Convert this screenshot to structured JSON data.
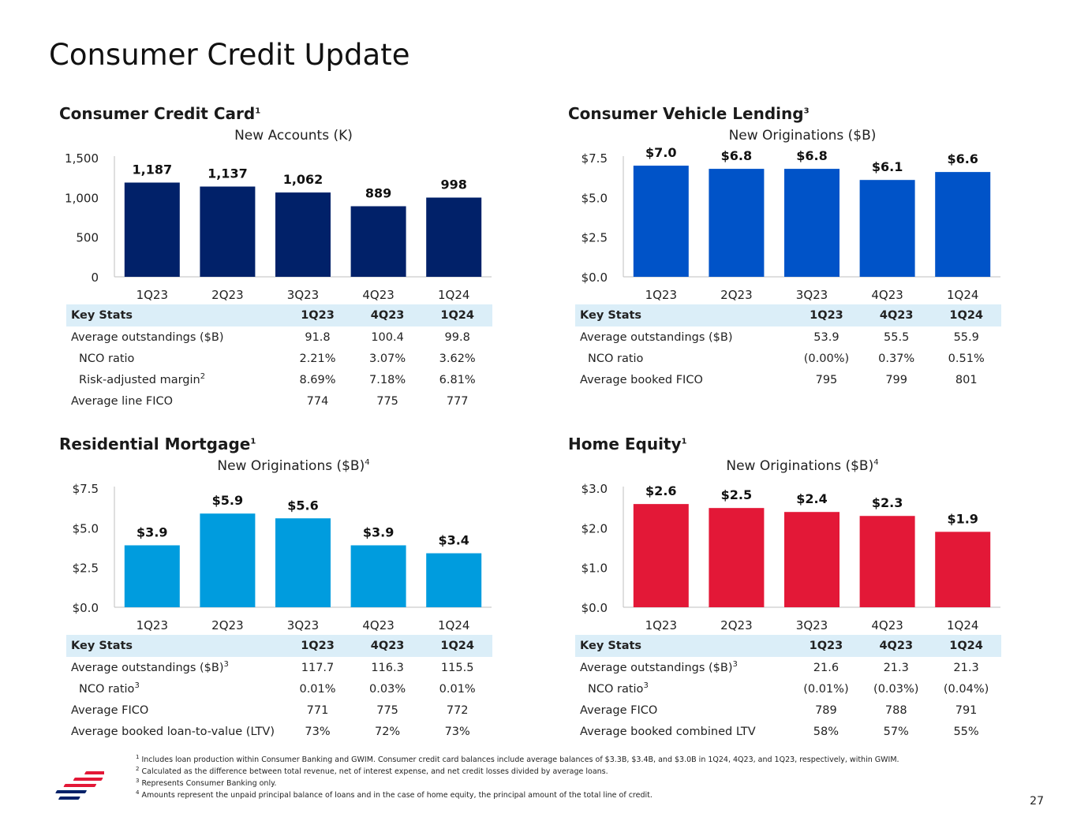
{
  "page": {
    "title": "Consumer Credit Update",
    "page_number": "27"
  },
  "panels": [
    {
      "title": "Consumer Credit Card",
      "title_sup": "1",
      "stats": {
        "headers": [
          "Key Stats",
          "1Q23",
          "4Q23",
          "1Q24"
        ],
        "rows": [
          {
            "label": "Average outstandings ($B)",
            "sup": "",
            "indent": false,
            "values": [
              "91.8",
              "100.4",
              "99.8"
            ]
          },
          {
            "label": "NCO ratio",
            "sup": "",
            "indent": true,
            "values": [
              "2.21%",
              "3.07%",
              "3.62%"
            ]
          },
          {
            "label": "Risk-adjusted margin",
            "sup": "2",
            "indent": true,
            "values": [
              "8.69%",
              "7.18%",
              "6.81%"
            ]
          },
          {
            "label": "Average line FICO",
            "sup": "",
            "indent": false,
            "values": [
              "774",
              "775",
              "777"
            ]
          }
        ]
      }
    },
    {
      "title": "Consumer Vehicle Lending",
      "title_sup": "3",
      "stats": {
        "headers": [
          "Key Stats",
          "1Q23",
          "4Q23",
          "1Q24"
        ],
        "rows": [
          {
            "label": "Average outstandings ($B)",
            "sup": "",
            "indent": false,
            "values": [
              "53.9",
              "55.5",
              "55.9"
            ]
          },
          {
            "label": "NCO ratio",
            "sup": "",
            "indent": true,
            "values": [
              "(0.00%)",
              "0.37%",
              "0.51%"
            ]
          },
          {
            "label": "Average booked FICO",
            "sup": "",
            "indent": false,
            "values": [
              "795",
              "799",
              "801"
            ]
          }
        ]
      }
    },
    {
      "title": "Residential Mortgage",
      "title_sup": "1",
      "stats": {
        "headers": [
          "Key Stats",
          "1Q23",
          "4Q23",
          "1Q24"
        ],
        "rows": [
          {
            "label": "Average outstandings ($B)",
            "sup": "3",
            "indent": false,
            "values": [
              "117.7",
              "116.3",
              "115.5"
            ]
          },
          {
            "label": "NCO ratio",
            "sup": "3",
            "indent": true,
            "values": [
              "0.01%",
              "0.03%",
              "0.01%"
            ]
          },
          {
            "label": "Average FICO",
            "sup": "",
            "indent": false,
            "values": [
              "771",
              "775",
              "772"
            ]
          },
          {
            "label": "Average booked loan-to-value (LTV)",
            "sup": "",
            "indent": false,
            "values": [
              "73%",
              "72%",
              "73%"
            ]
          }
        ]
      }
    },
    {
      "title": "Home Equity",
      "title_sup": "1",
      "stats": {
        "headers": [
          "Key Stats",
          "1Q23",
          "4Q23",
          "1Q24"
        ],
        "rows": [
          {
            "label": "Average outstandings ($B)",
            "sup": "3",
            "indent": false,
            "values": [
              "21.6",
              "21.3",
              "21.3"
            ]
          },
          {
            "label": "NCO ratio",
            "sup": "3",
            "indent": true,
            "values": [
              "(0.01%)",
              "(0.03%)",
              "(0.04%)"
            ]
          },
          {
            "label": "Average FICO",
            "sup": "",
            "indent": false,
            "values": [
              "789",
              "788",
              "791"
            ]
          },
          {
            "label": "Average booked combined LTV",
            "sup": "",
            "indent": false,
            "values": [
              "58%",
              "57%",
              "55%"
            ]
          }
        ]
      }
    }
  ],
  "chart_data": [
    {
      "type": "bar",
      "title": "New Accounts (K)",
      "title_sup": "",
      "categories": [
        "1Q23",
        "2Q23",
        "3Q23",
        "4Q23",
        "1Q24"
      ],
      "values": [
        1187,
        1137,
        1062,
        889,
        998
      ],
      "labels": [
        "1,187",
        "1,137",
        "1,062",
        "889",
        "998"
      ],
      "yticks": [
        0,
        500,
        1000,
        1500
      ],
      "ytick_labels": [
        "0",
        "500",
        "1,000",
        "1,500"
      ],
      "ylim": [
        0,
        1500
      ],
      "color": "#012169"
    },
    {
      "type": "bar",
      "title": "New Originations ($B)",
      "title_sup": "",
      "categories": [
        "1Q23",
        "2Q23",
        "3Q23",
        "4Q23",
        "1Q24"
      ],
      "values": [
        7.0,
        6.8,
        6.8,
        6.1,
        6.6
      ],
      "labels": [
        "$7.0",
        "$6.8",
        "$6.8",
        "$6.1",
        "$6.6"
      ],
      "yticks": [
        0,
        2.5,
        5.0,
        7.5
      ],
      "ytick_labels": [
        "$0.0",
        "$2.5",
        "$5.0",
        "$7.5"
      ],
      "ylim": [
        0,
        7.5
      ],
      "color": "#0053c8"
    },
    {
      "type": "bar",
      "title": "New Originations ($B)",
      "title_sup": "4",
      "categories": [
        "1Q23",
        "2Q23",
        "3Q23",
        "4Q23",
        "1Q24"
      ],
      "values": [
        3.9,
        5.9,
        5.6,
        3.9,
        3.4
      ],
      "labels": [
        "$3.9",
        "$5.9",
        "$5.6",
        "$3.9",
        "$3.4"
      ],
      "yticks": [
        0,
        2.5,
        5.0,
        7.5
      ],
      "ytick_labels": [
        "$0.0",
        "$2.5",
        "$5.0",
        "$7.5"
      ],
      "ylim": [
        0,
        7.5
      ],
      "color": "#009cde"
    },
    {
      "type": "bar",
      "title": "New Originations ($B)",
      "title_sup": "4",
      "categories": [
        "1Q23",
        "2Q23",
        "3Q23",
        "4Q23",
        "1Q24"
      ],
      "values": [
        2.6,
        2.5,
        2.4,
        2.3,
        1.9
      ],
      "labels": [
        "$2.6",
        "$2.5",
        "$2.4",
        "$2.3",
        "$1.9"
      ],
      "yticks": [
        0,
        1.0,
        2.0,
        3.0
      ],
      "ytick_labels": [
        "$0.0",
        "$1.0",
        "$2.0",
        "$3.0"
      ],
      "ylim": [
        0,
        3.0
      ],
      "color": "#e31837"
    }
  ],
  "footnotes": [
    {
      "num": "1",
      "text": "Includes loan production within Consumer Banking and GWIM. Consumer credit card balances include average balances of $3.3B, $3.4B, and $3.0B in 1Q24, 4Q23, and 1Q23, respectively, within GWIM."
    },
    {
      "num": "2",
      "text": "Calculated as the difference between total revenue, net of interest expense, and net credit losses divided by average loans."
    },
    {
      "num": "3",
      "text": "Represents Consumer Banking only."
    },
    {
      "num": "4",
      "text": "Amounts represent the unpaid principal balance of loans and in the case of home equity, the principal amount of the total line of credit."
    }
  ],
  "colors": {
    "flag_red": "#e31837",
    "flag_blue": "#012169"
  },
  "logo": {
    "icon": "bank-flag-logo-icon"
  }
}
